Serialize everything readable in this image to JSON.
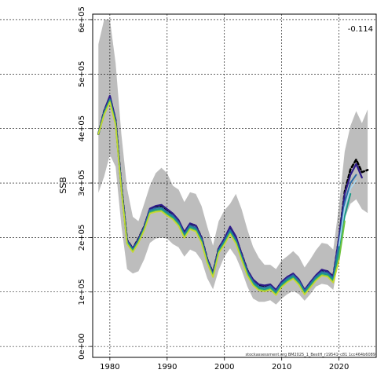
{
  "chart_data": {
    "type": "line",
    "title": "",
    "xlabel": "",
    "ylabel": "SSB",
    "xlim": [
      1977,
      2026.5
    ],
    "ylim": [
      -20000,
      610000
    ],
    "x_ticks": [
      {
        "value": 1980,
        "label": "1980"
      },
      {
        "value": 1990,
        "label": "1990"
      },
      {
        "value": 2000,
        "label": "2000"
      },
      {
        "value": 2010,
        "label": "2010"
      },
      {
        "value": 2020,
        "label": "2020"
      }
    ],
    "y_ticks": [
      {
        "value": 0,
        "label": "0e+00"
      },
      {
        "value": 100000,
        "label": "1e+05"
      },
      {
        "value": 200000,
        "label": "2e+05"
      },
      {
        "value": 300000,
        "label": "3e+05"
      },
      {
        "value": 400000,
        "label": "4e+05"
      },
      {
        "value": 500000,
        "label": "5e+05"
      },
      {
        "value": 600000,
        "label": "6e+05"
      }
    ],
    "grid": true,
    "annotation": "-0.114",
    "source_note": "stockassessment.org BM2025_1_BestH_r19541_c81 1cc464b6089",
    "confidence_band": {
      "color": "#bdbdbd",
      "x": [
        1978,
        1979,
        1980,
        1981,
        1982,
        1983,
        1984,
        1985,
        1986,
        1987,
        1988,
        1989,
        1990,
        1991,
        1992,
        1993,
        1994,
        1995,
        1996,
        1997,
        1998,
        1999,
        2000,
        2001,
        2002,
        2003,
        2004,
        2005,
        2006,
        2007,
        2008,
        2009,
        2010,
        2011,
        2012,
        2013,
        2014,
        2015,
        2016,
        2017,
        2018,
        2019,
        2020,
        2021,
        2022,
        2023,
        2024,
        2025
      ],
      "upper": [
        555000,
        600000,
        600000,
        520000,
        390000,
        290000,
        238000,
        230000,
        262000,
        295000,
        318000,
        328000,
        318000,
        295000,
        288000,
        265000,
        283000,
        280000,
        258000,
        220000,
        185000,
        230000,
        250000,
        262000,
        280000,
        252000,
        215000,
        183000,
        163000,
        150000,
        150000,
        142000,
        158000,
        166000,
        175000,
        165000,
        145000,
        160000,
        177000,
        190000,
        188000,
        178000,
        258000,
        358000,
        405000,
        432000,
        410000,
        435000
      ],
      "lower": [
        282000,
        312000,
        352000,
        330000,
        222000,
        142000,
        134000,
        138000,
        160000,
        190000,
        198000,
        200000,
        198000,
        188000,
        182000,
        165000,
        178000,
        173000,
        158000,
        125000,
        105000,
        140000,
        165000,
        180000,
        165000,
        140000,
        110000,
        88000,
        82000,
        82000,
        85000,
        77000,
        88000,
        96000,
        102000,
        96000,
        84000,
        96000,
        110000,
        115000,
        113000,
        104000,
        162000,
        235000,
        262000,
        270000,
        252000,
        245000
      ]
    },
    "series": [
      {
        "name": "",
        "color": "#000000",
        "dashed": true,
        "values": [
          390000,
          432000,
          458000,
          415000,
          295000,
          195000,
          180000,
          198000,
          220000,
          252000,
          257000,
          258000,
          250000,
          242000,
          230000,
          208000,
          225000,
          222000,
          200000,
          160000,
          135000,
          180000,
          197000,
          218000,
          200000,
          170000,
          140000,
          122000,
          113000,
          110000,
          113000,
          103000,
          118000,
          127000,
          133000,
          122000,
          103000,
          117000,
          130000,
          140000,
          138000,
          128000,
          198000,
          284000,
          325000,
          343000,
          320000,
          324000
        ]
      },
      {
        "name": "",
        "color": "#2e1a8a",
        "width": 2.2,
        "values": [
          390000,
          432000,
          460000,
          416000,
          295000,
          195000,
          180000,
          197000,
          220000,
          253000,
          258000,
          260000,
          252000,
          244000,
          232000,
          210000,
          226000,
          222000,
          200000,
          160000,
          135000,
          180000,
          198000,
          220000,
          202000,
          170000,
          140000,
          123000,
          114000,
          112000,
          114000,
          104000,
          119000,
          128000,
          134000,
          123000,
          104000,
          118000,
          131000,
          141000,
          138000,
          128000,
          200000,
          280000,
          315000,
          335000,
          310000
        ]
      },
      {
        "name": "",
        "color": "#2b6aa8",
        "width": 2,
        "values": [
          390000,
          430000,
          454000,
          412000,
          293000,
          193000,
          178000,
          195000,
          218000,
          250000,
          254000,
          255000,
          247000,
          240000,
          228000,
          206000,
          222000,
          218000,
          197000,
          158000,
          132000,
          177000,
          194000,
          214000,
          196000,
          166000,
          137000,
          119000,
          110000,
          108000,
          111000,
          101000,
          116000,
          125000,
          131000,
          120000,
          102000,
          115000,
          128000,
          137000,
          135000,
          125000,
          190000,
          265000,
          300000,
          315000
        ]
      },
      {
        "name": "",
        "color": "#1a9b86",
        "width": 2,
        "values": [
          390000,
          428000,
          452000,
          410000,
          291000,
          191000,
          176000,
          193000,
          216000,
          247000,
          251000,
          252000,
          244000,
          237000,
          225000,
          203000,
          219000,
          215000,
          194000,
          156000,
          130000,
          175000,
          191000,
          210000,
          193000,
          163000,
          134000,
          116000,
          107000,
          105000,
          108000,
          98000,
          113000,
          122000,
          128000,
          117000,
          99000,
          112000,
          125000,
          134000,
          132000,
          122000,
          175000,
          240000,
          280000
        ]
      },
      {
        "name": "",
        "color": "#6fc43e",
        "width": 2,
        "values": [
          390000,
          426000,
          450000,
          408000,
          289000,
          189000,
          174000,
          191000,
          214000,
          245000,
          248000,
          249000,
          241000,
          234000,
          222000,
          200000,
          216000,
          212000,
          191000,
          154000,
          128000,
          172000,
          188000,
          207000,
          190000,
          160000,
          131000,
          113000,
          104000,
          102000,
          105000,
          95000,
          110000,
          119000,
          125000,
          114000,
          96000,
          109000,
          122000,
          131000,
          129000,
          118000,
          160000,
          230000
        ]
      },
      {
        "name": "",
        "color": "#c9d832",
        "width": 1.6,
        "values": [
          390000,
          425000,
          448000,
          406000,
          288000,
          188000,
          173000,
          190000,
          213000,
          244000,
          247000,
          248000,
          240000,
          233000,
          221000,
          199000,
          215000,
          211000,
          190000,
          153000,
          127000,
          171000,
          187000,
          206000,
          189000,
          159000,
          130000,
          112000,
          103000,
          101000,
          104000,
          94000,
          109000,
          118000,
          124000,
          113000,
          95000,
          108000,
          121000,
          130000,
          128000,
          117000,
          158000
        ]
      },
      {
        "name": "",
        "color": "#a8d8f0",
        "width": 1.6,
        "values": [
          null,
          null,
          null,
          null,
          null,
          null,
          null,
          null,
          null,
          null,
          null,
          null,
          null,
          null,
          null,
          null,
          null,
          null,
          null,
          null,
          null,
          null,
          null,
          null,
          null,
          null,
          null,
          null,
          null,
          null,
          null,
          null,
          null,
          null,
          null,
          null,
          null,
          null,
          null,
          null,
          null,
          null,
          185000,
          255000,
          290000,
          305000
        ]
      }
    ]
  }
}
